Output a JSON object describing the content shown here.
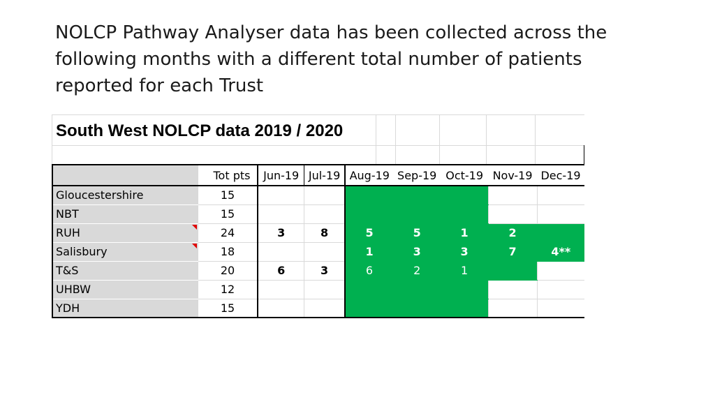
{
  "heading": {
    "line1": "NOLCP Pathway Analyser data has been collected across the",
    "line2": "following months with a different total number of patients",
    "line3": "reported for each Trust"
  },
  "sheet": {
    "title": "South West NOLCP data 2019 / 2020",
    "header": {
      "trust": "",
      "tot_pts": "Tot pts"
    },
    "months": [
      "Jun-19",
      "Jul-19",
      "Aug-19",
      "Sep-19",
      "Oct-19",
      "Nov-19",
      "Dec-19"
    ],
    "rows": [
      {
        "trust": "Gloucestershire",
        "tot": "15",
        "cells": [
          "",
          "",
          "",
          "",
          "",
          "",
          ""
        ]
      },
      {
        "trust": "NBT",
        "tot": "15",
        "cells": [
          "",
          "",
          "",
          "",
          "",
          "",
          ""
        ]
      },
      {
        "trust": "RUH",
        "tot": "24",
        "cells": [
          "3",
          "8",
          "5",
          "5",
          "1",
          "2",
          ""
        ]
      },
      {
        "trust": "Salisbury",
        "tot": "18",
        "cells": [
          "",
          "",
          "1",
          "3",
          "3",
          "7",
          "4**"
        ]
      },
      {
        "trust": "T&S",
        "tot": "20",
        "cells": [
          "6",
          "3",
          "6",
          "2",
          "1",
          "",
          ""
        ]
      },
      {
        "trust": "UHBW",
        "tot": "12",
        "cells": [
          "",
          "",
          "",
          "",
          "",
          "",
          ""
        ]
      },
      {
        "trust": "YDH",
        "tot": "15",
        "cells": [
          "",
          "",
          "",
          "",
          "",
          "",
          ""
        ]
      }
    ],
    "highlight_color": "#00b050",
    "comment_flag_color": "#e00000"
  }
}
